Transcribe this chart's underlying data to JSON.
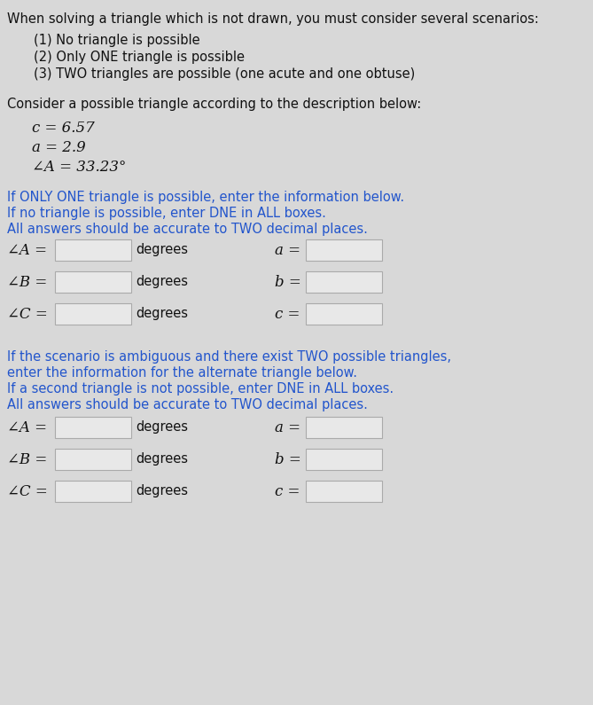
{
  "bg_color": "#d8d8d8",
  "title_text": "When solving a triangle which is not drawn, you must consider several scenarios:",
  "scenarios": [
    "(1) No triangle is possible",
    "(2) Only ONE triangle is possible",
    "(3) TWO triangles are possible (one acute and one obtuse)"
  ],
  "consider_text": "Consider a possible triangle according to the description below:",
  "given": [
    "c = 6.57",
    "a = 2.9",
    "∠A = 33.23°"
  ],
  "section1_lines": [
    "If ONLY ONE triangle is possible, enter the information below.",
    "If no triangle is possible, enter DNE in ALL boxes.",
    "All answers should be accurate to TWO decimal places."
  ],
  "section2_lines": [
    "If the scenario is ambiguous and there exist TWO possible triangles,",
    "enter the information for the alternate triangle below.",
    "If a second triangle is not possible, enter DNE in ALL boxes.",
    "All answers should be accurate to TWO decimal places."
  ],
  "angle_labels": [
    "∠A =",
    "∠B =",
    "∠C ="
  ],
  "side_labels": [
    "a =",
    "b =",
    "c ="
  ],
  "degrees_label": "degrees",
  "text_color_black": "#111111",
  "text_color_blue": "#2255cc",
  "box_facecolor": "#e8e8e8",
  "box_edgecolor": "#aaaaaa",
  "fig_width": 6.69,
  "fig_height": 7.95,
  "dpi": 100
}
